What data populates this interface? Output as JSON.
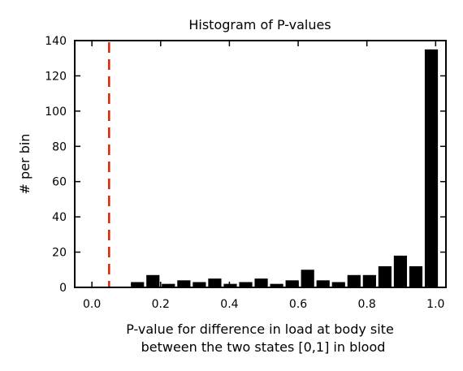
{
  "chart_data": {
    "type": "bar",
    "title": "Histogram of P-values",
    "xlabel_line1": "P-value for difference in load at body site",
    "xlabel_line2": "between the two states [0,1] in blood",
    "ylabel": "# per bin",
    "xlim": [
      -0.05,
      1.03
    ],
    "ylim": [
      0,
      140
    ],
    "x_ticks": [
      0.0,
      0.2,
      0.4,
      0.6,
      0.8,
      1.0
    ],
    "x_tick_labels": [
      "0.0",
      "0.2",
      "0.4",
      "0.6",
      "0.8",
      "1.0"
    ],
    "y_ticks": [
      0,
      20,
      40,
      60,
      80,
      100,
      120,
      140
    ],
    "y_tick_labels": [
      "0",
      "20",
      "40",
      "60",
      "80",
      "100",
      "120",
      "140"
    ],
    "bin_width": 0.045,
    "bar_fraction": 0.85,
    "bins": [
      {
        "x": 0.1325,
        "count": 3
      },
      {
        "x": 0.1775,
        "count": 7
      },
      {
        "x": 0.2225,
        "count": 2
      },
      {
        "x": 0.2675,
        "count": 4
      },
      {
        "x": 0.3125,
        "count": 3
      },
      {
        "x": 0.3575,
        "count": 5
      },
      {
        "x": 0.4025,
        "count": 2
      },
      {
        "x": 0.4475,
        "count": 3
      },
      {
        "x": 0.4925,
        "count": 5
      },
      {
        "x": 0.5375,
        "count": 2
      },
      {
        "x": 0.5825,
        "count": 4
      },
      {
        "x": 0.6275,
        "count": 10
      },
      {
        "x": 0.6725,
        "count": 4
      },
      {
        "x": 0.7175,
        "count": 3
      },
      {
        "x": 0.7625,
        "count": 7
      },
      {
        "x": 0.8075,
        "count": 7
      },
      {
        "x": 0.8525,
        "count": 12
      },
      {
        "x": 0.8975,
        "count": 18
      },
      {
        "x": 0.9425,
        "count": 12
      },
      {
        "x": 0.9875,
        "count": 135
      }
    ],
    "threshold_line": {
      "x": 0.05,
      "color": "#dd2200",
      "style": "dashed"
    },
    "bar_color": "#000000",
    "grid": false
  }
}
